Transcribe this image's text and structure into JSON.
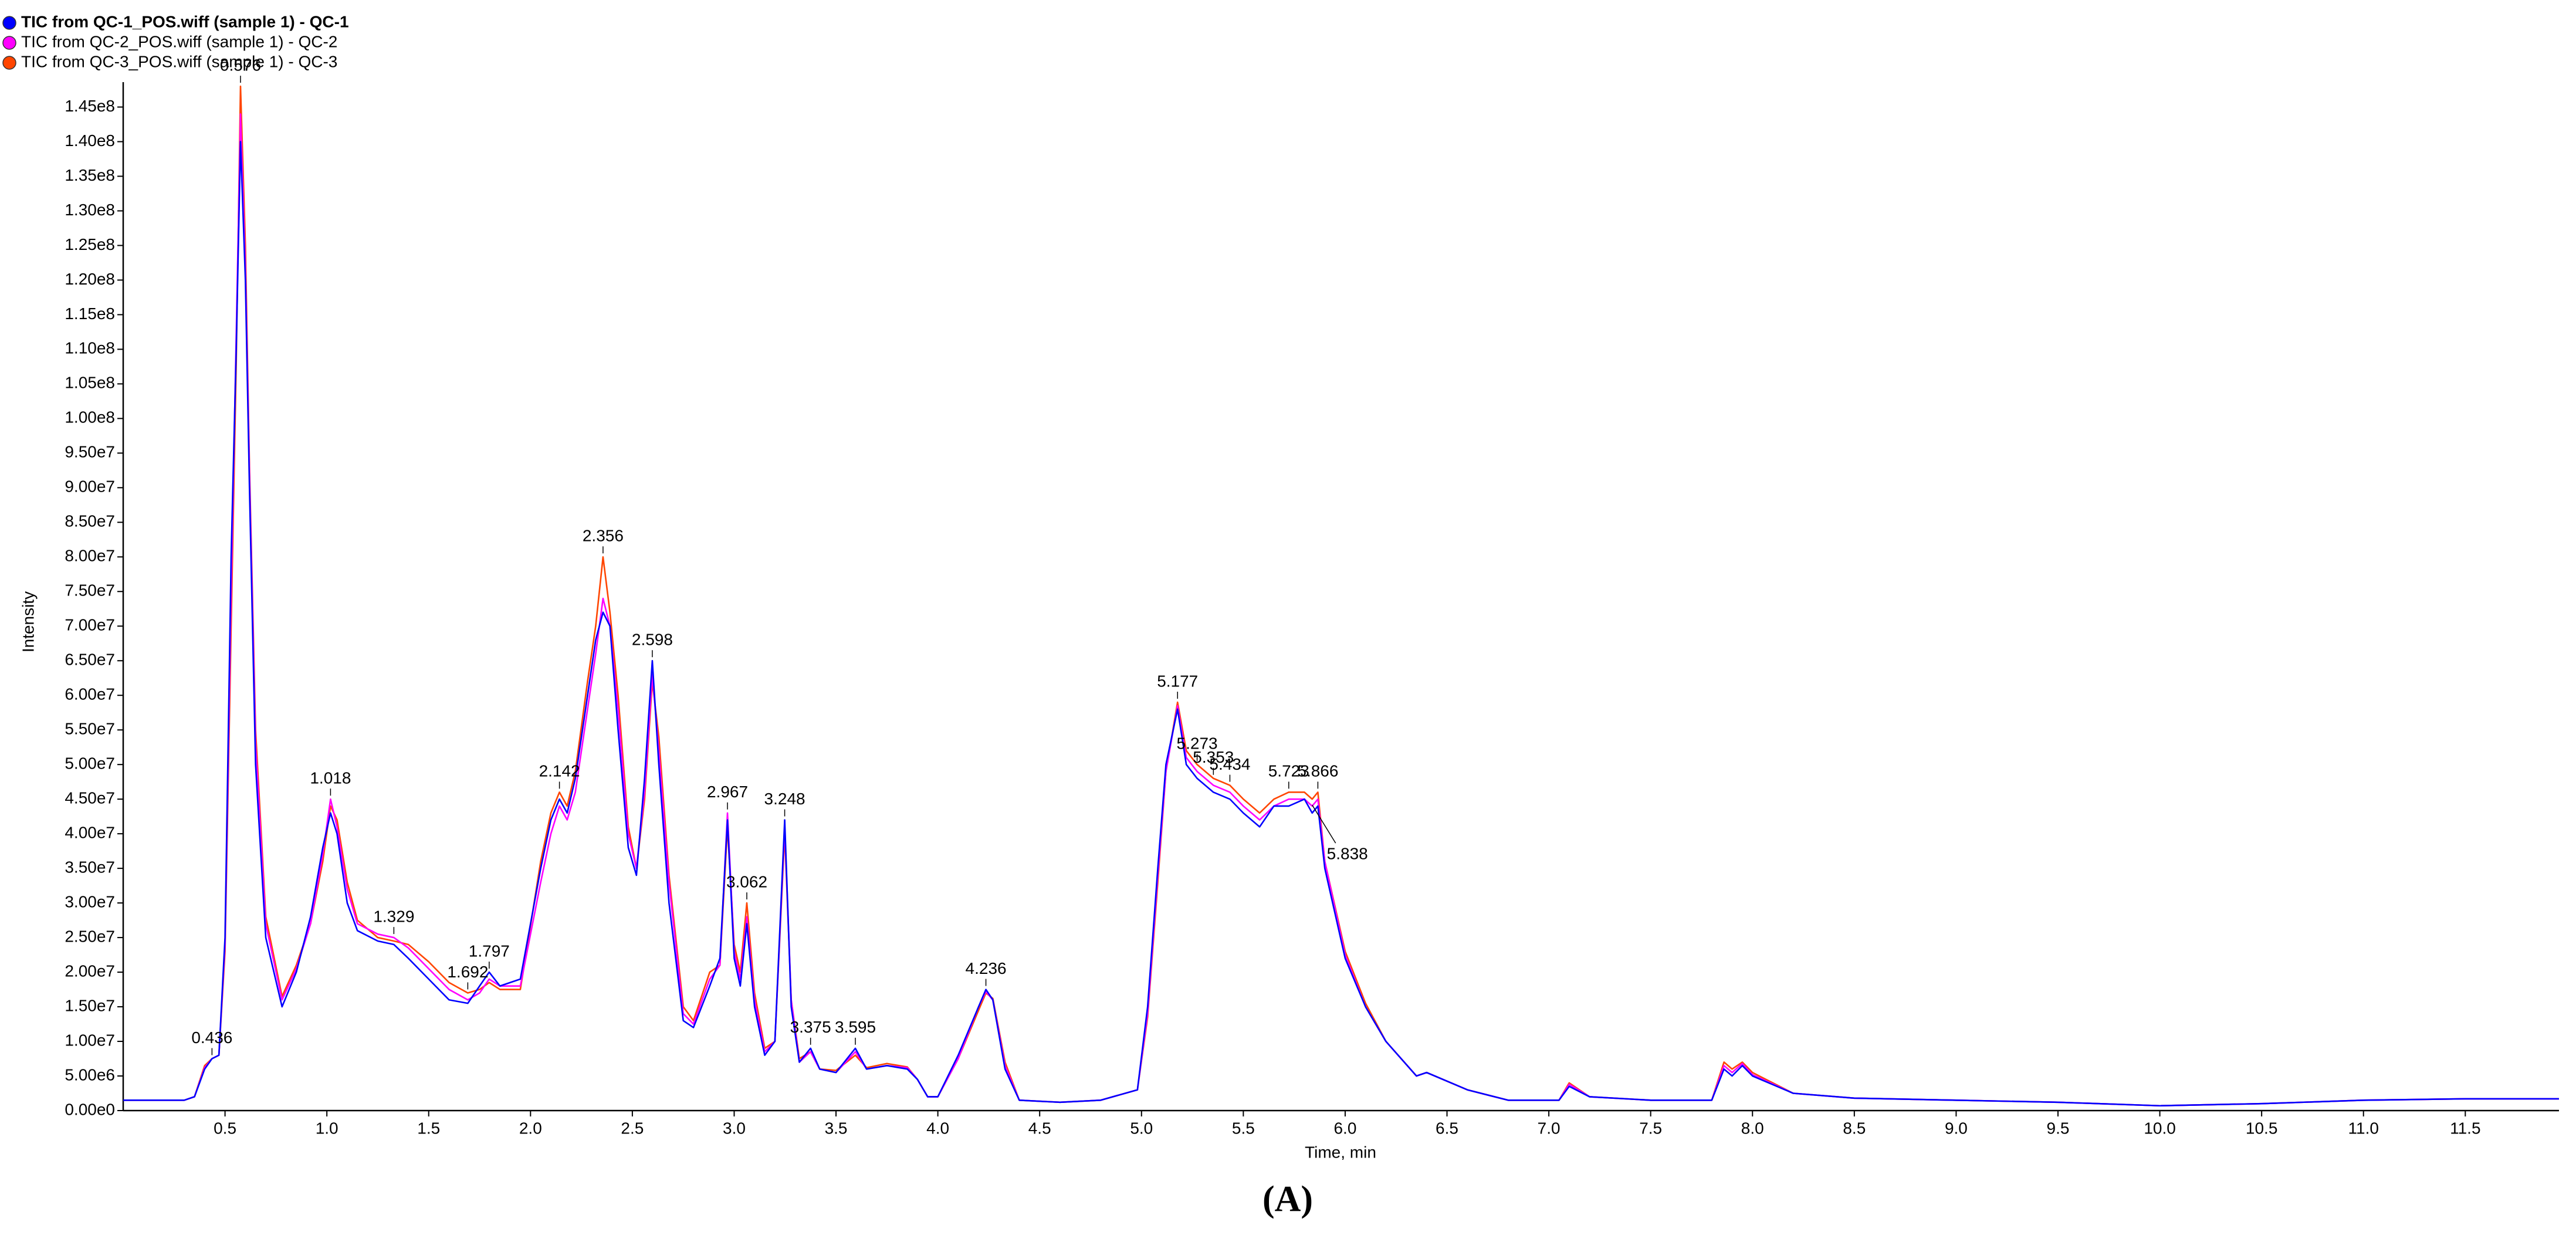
{
  "chart_data": {
    "type": "line",
    "x_label": "Time, min",
    "y_label": "Intensity",
    "caption": "(A)",
    "xlim": [
      0,
      11.96
    ],
    "ylim": [
      0,
      148600000
    ],
    "xticks": [
      0.5,
      {
        "value": 1,
        "label": "1.0"
      },
      1.5,
      {
        "value": 2,
        "label": "2.0"
      },
      2.5,
      {
        "value": 3,
        "label": "3.0"
      },
      3.5,
      {
        "value": 4,
        "label": "4.0"
      },
      4.5,
      {
        "value": 5,
        "label": "5.0"
      },
      5.5,
      {
        "value": 6,
        "label": "6.0"
      },
      6.5,
      {
        "value": 7,
        "label": "7.0"
      },
      7.5,
      {
        "value": 8,
        "label": "8.0"
      },
      8.5,
      {
        "value": 9,
        "label": "9.0"
      },
      9.5,
      {
        "value": 10,
        "label": "10.0"
      },
      10.5,
      {
        "value": 11,
        "label": "11.0"
      },
      11.5
    ],
    "yticks": [
      {
        "value": 0,
        "label": "0.00e0"
      },
      {
        "value": 5000000.0,
        "label": "5.00e6"
      },
      {
        "value": 10000000.0,
        "label": "1.00e7"
      },
      {
        "value": 15000000.0,
        "label": "1.50e7"
      },
      {
        "value": 20000000.0,
        "label": "2.00e7"
      },
      {
        "value": 25000000.0,
        "label": "2.50e7"
      },
      {
        "value": 30000000.0,
        "label": "3.00e7"
      },
      {
        "value": 35000000.0,
        "label": "3.50e7"
      },
      {
        "value": 40000000.0,
        "label": "4.00e7"
      },
      {
        "value": 45000000.0,
        "label": "4.50e7"
      },
      {
        "value": 50000000.0,
        "label": "5.00e7"
      },
      {
        "value": 55000000.0,
        "label": "5.50e7"
      },
      {
        "value": 60000000.0,
        "label": "6.00e7"
      },
      {
        "value": 65000000.0,
        "label": "6.50e7"
      },
      {
        "value": 70000000.0,
        "label": "7.00e7"
      },
      {
        "value": 75000000.0,
        "label": "7.50e7"
      },
      {
        "value": 80000000.0,
        "label": "8.00e7"
      },
      {
        "value": 85000000.0,
        "label": "8.50e7"
      },
      {
        "value": 90000000.0,
        "label": "9.00e7"
      },
      {
        "value": 95000000.0,
        "label": "9.50e7"
      },
      {
        "value": 100000000.0,
        "label": "1.00e8"
      },
      {
        "value": 105000000.0,
        "label": "1.05e8"
      },
      {
        "value": 110000000.0,
        "label": "1.10e8"
      },
      {
        "value": 115000000.0,
        "label": "1.15e8"
      },
      {
        "value": 120000000.0,
        "label": "1.20e8"
      },
      {
        "value": 125000000.0,
        "label": "1.25e8"
      },
      {
        "value": 130000000.0,
        "label": "1.30e8"
      },
      {
        "value": 135000000.0,
        "label": "1.35e8"
      },
      {
        "value": 140000000.0,
        "label": "1.40e8"
      },
      {
        "value": 145000000.0,
        "label": "1.45e8"
      }
    ],
    "x": [
      0,
      0.3,
      0.35,
      0.4,
      0.436,
      0.47,
      0.5,
      0.53,
      0.555,
      0.576,
      0.6,
      0.62,
      0.65,
      0.7,
      0.78,
      0.85,
      0.92,
      0.98,
      1.018,
      1.05,
      1.1,
      1.15,
      1.25,
      1.329,
      1.4,
      1.5,
      1.6,
      1.692,
      1.75,
      1.797,
      1.85,
      1.95,
      2.05,
      2.1,
      2.142,
      2.18,
      2.22,
      2.28,
      2.32,
      2.356,
      2.39,
      2.43,
      2.48,
      2.52,
      2.56,
      2.598,
      2.63,
      2.68,
      2.75,
      2.8,
      2.88,
      2.93,
      2.967,
      3.0,
      3.03,
      3.062,
      3.1,
      3.15,
      3.2,
      3.248,
      3.28,
      3.32,
      3.375,
      3.42,
      3.5,
      3.595,
      3.65,
      3.75,
      3.85,
      3.9,
      3.95,
      4.0,
      4.1,
      4.2,
      4.236,
      4.27,
      4.33,
      4.4,
      4.6,
      4.8,
      4.98,
      5.03,
      5.08,
      5.12,
      5.177,
      5.22,
      5.273,
      5.353,
      5.434,
      5.5,
      5.58,
      5.65,
      5.723,
      5.8,
      5.838,
      5.866,
      5.9,
      6.0,
      6.1,
      6.2,
      6.35,
      6.4,
      6.6,
      6.8,
      7.05,
      7.1,
      7.2,
      7.5,
      7.8,
      7.86,
      7.9,
      7.95,
      8.0,
      8.2,
      8.5,
      9.0,
      9.5,
      10.0,
      10.5,
      11.0,
      11.5,
      11.96
    ],
    "series": [
      {
        "name": "TIC from QC-1_POS.wiff (sample 1) - QC-1",
        "color": "#0000ff",
        "values": [
          1500000.0,
          1500000.0,
          2000000.0,
          6000000.0,
          7500000.0,
          8000000.0,
          25000000.0,
          80000000.0,
          110000000.0,
          140000000.0,
          120000000.0,
          90000000.0,
          50000000.0,
          25000000.0,
          15000000.0,
          20000000.0,
          28000000.0,
          38000000.0,
          43000000.0,
          40000000.0,
          30000000.0,
          26000000.0,
          24500000.0,
          24000000.0,
          22000000.0,
          19000000.0,
          16000000.0,
          15500000.0,
          18000000.0,
          20000000.0,
          18000000.0,
          19000000.0,
          35000000.0,
          42000000.0,
          45000000.0,
          43000000.0,
          48000000.0,
          60000000.0,
          68000000.0,
          72000000.0,
          70000000.0,
          55000000.0,
          38000000.0,
          34000000.0,
          48000000.0,
          65000000.0,
          50000000.0,
          30000000.0,
          13000000.0,
          12000000.0,
          18000000.0,
          22000000.0,
          42000000.0,
          22000000.0,
          18000000.0,
          27000000.0,
          15000000.0,
          8000000.0,
          10000000.0,
          42000000.0,
          15000000.0,
          7000000.0,
          9000000.0,
          6000000.0,
          5500000.0,
          9000000.0,
          6000000.0,
          6500000.0,
          6000000.0,
          4500000.0,
          2000000.0,
          2000000.0,
          8000000.0,
          15000000.0,
          17500000.0,
          16000000.0,
          6000000.0,
          1500000.0,
          1200000.0,
          1500000.0,
          3000000.0,
          15000000.0,
          35000000.0,
          50000000.0,
          58000000.0,
          50000000.0,
          48000000.0,
          46000000.0,
          45000000.0,
          43000000.0,
          41000000.0,
          44000000.0,
          44000000.0,
          45000000.0,
          43000000.0,
          44000000.0,
          35000000.0,
          22000000.0,
          15000000.0,
          10000000.0,
          5000000.0,
          5500000.0,
          3000000.0,
          1500000.0,
          1500000.0,
          3500000.0,
          2000000.0,
          1500000.0,
          1500000.0,
          6000000.0,
          5000000.0,
          6500000.0,
          5000000.0,
          2500000.0,
          1800000.0,
          1500000.0,
          1200000.0,
          700000.0,
          1000000.0,
          1500000.0,
          1700000.0,
          1700000.0
        ]
      },
      {
        "name": "TIC from QC-2_POS.wiff (sample 1) - QC-2",
        "color": "#ff00ff",
        "values": [
          1500000.0,
          1500000.0,
          2000000.0,
          6200000.0,
          7500000.0,
          8000000.0,
          24000000.0,
          75000000.0,
          112000000.0,
          144000000.0,
          122000000.0,
          92000000.0,
          53000000.0,
          27000000.0,
          16000000.0,
          20500000.0,
          27000000.0,
          37000000.0,
          45000000.0,
          41000000.0,
          32000000.0,
          27000000.0,
          25500000.0,
          25000000.0,
          23500000.0,
          20500000.0,
          17500000.0,
          16000000.0,
          17000000.0,
          19000000.0,
          18000000.0,
          18000000.0,
          33000000.0,
          40000000.0,
          44000000.0,
          42000000.0,
          46000000.0,
          58000000.0,
          66000000.0,
          74000000.0,
          70000000.0,
          58000000.0,
          40000000.0,
          35000000.0,
          46000000.0,
          63000000.0,
          52000000.0,
          33000000.0,
          14000000.0,
          12500000.0,
          19000000.0,
          21000000.0,
          43000000.0,
          23000000.0,
          19000000.0,
          28000000.0,
          16000000.0,
          8500000.0,
          10000000.0,
          41000000.0,
          16000000.0,
          7000000.0,
          8500000.0,
          6000000.0,
          5500000.0,
          8500000.0,
          6000000.0,
          6500000.0,
          6200000.0,
          4500000.0,
          2000000.0,
          2000000.0,
          7500000.0,
          15000000.0,
          17200000.0,
          16000000.0,
          6500000.0,
          1500000.0,
          1200000.0,
          1500000.0,
          3000000.0,
          14000000.0,
          34000000.0,
          49000000.0,
          58500000.0,
          51000000.0,
          49000000.0,
          47000000.0,
          46000000.0,
          44000000.0,
          42000000.0,
          44000000.0,
          45000000.0,
          45000000.0,
          44000000.0,
          45000000.0,
          36000000.0,
          22500000.0,
          15000000.0,
          10000000.0,
          5000000.0,
          5500000.0,
          3000000.0,
          1500000.0,
          1500000.0,
          3800000.0,
          2000000.0,
          1500000.0,
          1500000.0,
          6500000.0,
          5500000.0,
          6800000.0,
          5200000.0,
          2500000.0,
          1800000.0,
          1500000.0,
          1200000.0,
          700000.0,
          1000000.0,
          1500000.0,
          1700000.0,
          1700000.0
        ]
      },
      {
        "name": "TIC from QC-3_POS.wiff (sample 1) - QC-3",
        "color": "#ff4500",
        "values": [
          1500000.0,
          1500000.0,
          2000000.0,
          6500000.0,
          7500000.0,
          8000000.0,
          23000000.0,
          70000000.0,
          108000000.0,
          148000000.0,
          125000000.0,
          93000000.0,
          55000000.0,
          28000000.0,
          16500000.0,
          21000000.0,
          27000000.0,
          36000000.0,
          44000000.0,
          42000000.0,
          33000000.0,
          27500000.0,
          25000000.0,
          24500000.0,
          24000000.0,
          21500000.0,
          18500000.0,
          17000000.0,
          17500000.0,
          18500000.0,
          17500000.0,
          17500000.0,
          36000000.0,
          43000000.0,
          46000000.0,
          44000000.0,
          49000000.0,
          62000000.0,
          70000000.0,
          80000000.0,
          72000000.0,
          60000000.0,
          41000000.0,
          35000000.0,
          45000000.0,
          62000000.0,
          54000000.0,
          34000000.0,
          15000000.0,
          13000000.0,
          20000000.0,
          21000000.0,
          41000000.0,
          24000000.0,
          20000000.0,
          30000000.0,
          17000000.0,
          9000000.0,
          10000000.0,
          40000000.0,
          16000000.0,
          7500000.0,
          8500000.0,
          6000000.0,
          5800000.0,
          8000000.0,
          6200000.0,
          6800000.0,
          6300000.0,
          4500000.0,
          2000000.0,
          2000000.0,
          7500000.0,
          14500000.0,
          17000000.0,
          16200000.0,
          7000000.0,
          1500000.0,
          1200000.0,
          1500000.0,
          3000000.0,
          13500000.0,
          33000000.0,
          49000000.0,
          59000000.0,
          52000000.0,
          50000000.0,
          48000000.0,
          47000000.0,
          45000000.0,
          43000000.0,
          45000000.0,
          46000000.0,
          46000000.0,
          45000000.0,
          46000000.0,
          36000000.0,
          23000000.0,
          15500000.0,
          10000000.0,
          5000000.0,
          5500000.0,
          3000000.0,
          1500000.0,
          1500000.0,
          4000000.0,
          2000000.0,
          1500000.0,
          1500000.0,
          7000000.0,
          6000000.0,
          7000000.0,
          5500000.0,
          2500000.0,
          1800000.0,
          1500000.0,
          1200000.0,
          700000.0,
          1000000.0,
          1500000.0,
          1700000.0,
          1700000.0
        ]
      }
    ],
    "peak_labels": [
      0.436,
      0.576,
      1.018,
      1.329,
      1.692,
      1.797,
      2.142,
      2.356,
      2.598,
      2.967,
      3.062,
      3.248,
      3.375,
      3.595,
      4.236,
      5.177,
      5.273,
      5.353,
      5.434,
      5.723,
      5.866,
      5.838
    ]
  }
}
